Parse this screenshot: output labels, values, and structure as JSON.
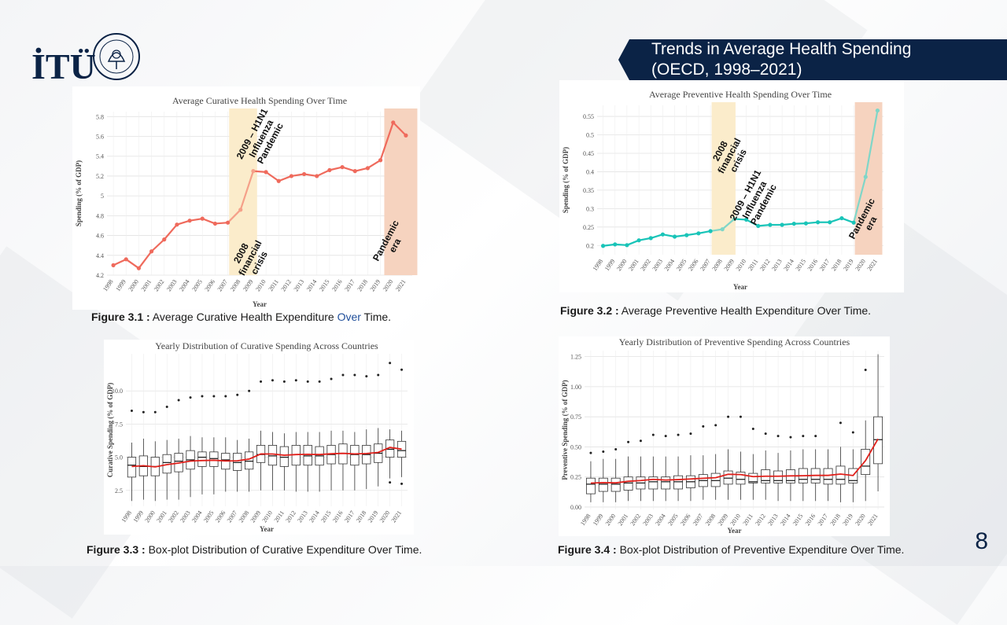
{
  "logo": {
    "text": "İTÜ",
    "seal_text": "İSTANBUL TEKNİK ÜNİVERSİTESİ 1773"
  },
  "slide": {
    "title_line1": "Trends in Average Health Spending",
    "title_line2": "(OECD, 1998–2021)",
    "page_number": "8"
  },
  "captions": {
    "fig1": {
      "label": "Figure 3.1 :",
      "text_a": " Average Curative Health Expenditure ",
      "text_b": "Over",
      "text_c": " Time."
    },
    "fig2": {
      "label": "Figure 3.2 :",
      "text": " Average Preventive Health Expenditure Over Time."
    },
    "fig3": {
      "label": "Figure 3.3 :",
      "text": " Box-plot Distribution of Curative Expenditure Over Time."
    },
    "fig4": {
      "label": "Figure 3.4 :",
      "text": " Box-plot Distribution of Preventive Expenditure Over Time."
    }
  },
  "chart_data": [
    {
      "id": "curative-line",
      "type": "line",
      "title": "Average Curative Health Spending Over Time",
      "xlabel": "Year",
      "ylabel": "Spending (% of GDP)",
      "x": [
        1998,
        1999,
        2000,
        2001,
        2002,
        2003,
        2004,
        2005,
        2006,
        2007,
        2008,
        2009,
        2010,
        2011,
        2012,
        2013,
        2014,
        2015,
        2016,
        2017,
        2018,
        2019,
        2020,
        2021
      ],
      "values": [
        4.3,
        4.36,
        4.27,
        4.44,
        4.56,
        4.71,
        4.75,
        4.77,
        4.72,
        4.73,
        4.86,
        5.25,
        5.24,
        5.15,
        5.2,
        5.22,
        5.2,
        5.26,
        5.29,
        5.25,
        5.28,
        5.36,
        5.74,
        5.61
      ],
      "ylim": [
        4.2,
        5.85
      ],
      "yticks": [
        4.2,
        4.4,
        4.6,
        4.8,
        5,
        5.2,
        5.4,
        5.6,
        5.8
      ],
      "color": "#ef6a5c",
      "highlight_segments": [
        {
          "from": 2007,
          "to": 2009,
          "color": "#f5a089"
        }
      ],
      "shaded_regions": [
        {
          "from": 2007.1,
          "to": 2009.3,
          "color": "#fbeccb"
        },
        {
          "from": 2019.3,
          "to": 2021.9,
          "color": "#f6d3bf"
        }
      ],
      "annotations": [
        {
          "lines": [
            "2009 – H1N1",
            "Influenza",
            "Pandemic"
          ]
        },
        {
          "lines": [
            "2008",
            "financial",
            "crisis"
          ]
        },
        {
          "lines": [
            "Pandemic",
            "era"
          ]
        }
      ],
      "grid": true
    },
    {
      "id": "preventive-line",
      "type": "line",
      "title": "Average Preventive Health Spending Over Time",
      "xlabel": "Year",
      "ylabel": "Spending (% of GDP)",
      "x": [
        1998,
        1999,
        2000,
        2001,
        2002,
        2003,
        2004,
        2005,
        2006,
        2007,
        2008,
        2009,
        2010,
        2011,
        2012,
        2013,
        2014,
        2015,
        2016,
        2017,
        2018,
        2019,
        2020,
        2021
      ],
      "values": [
        0.199,
        0.203,
        0.201,
        0.214,
        0.22,
        0.23,
        0.224,
        0.228,
        0.233,
        0.239,
        0.244,
        0.272,
        0.27,
        0.253,
        0.256,
        0.256,
        0.259,
        0.26,
        0.263,
        0.263,
        0.274,
        0.262,
        0.386,
        0.566
      ],
      "ylim": [
        0.175,
        0.58
      ],
      "yticks": [
        0.2,
        0.25,
        0.3,
        0.35,
        0.4,
        0.45,
        0.5,
        0.55
      ],
      "color": "#19c4b8",
      "highlight_segments": [
        {
          "from": 2007,
          "to": 2009,
          "color": "#7fd6c8"
        },
        {
          "from": 2019,
          "to": 2021,
          "color": "#7fd6c8"
        }
      ],
      "shaded_regions": [
        {
          "from": 2007.1,
          "to": 2009.1,
          "color": "#fbeccb"
        },
        {
          "from": 2019.1,
          "to": 2021.4,
          "color": "#f6d3bf"
        }
      ],
      "annotations": [
        {
          "lines": [
            "2008",
            "financial",
            "crisis"
          ]
        },
        {
          "lines": [
            "2009 – H1N1",
            "Influenza",
            "Pandemic"
          ]
        },
        {
          "lines": [
            "Pandemic",
            "era"
          ]
        }
      ],
      "grid": true
    },
    {
      "id": "curative-box",
      "type": "box",
      "title": "Yearly Distribution of Curative Spending Across Countries",
      "xlabel": "Year",
      "ylabel": "Curative Spending (% of GDP)",
      "x": [
        1998,
        1999,
        2000,
        2001,
        2002,
        2003,
        2004,
        2005,
        2006,
        2007,
        2008,
        2009,
        2010,
        2011,
        2012,
        2013,
        2014,
        2015,
        2016,
        2017,
        2018,
        2019,
        2020,
        2021
      ],
      "ylim": [
        1.3,
        12.8
      ],
      "yticks": [
        2.5,
        5.0,
        7.5,
        10.0
      ],
      "q1": [
        3.5,
        3.6,
        3.6,
        3.8,
        3.9,
        4.1,
        4.3,
        4.3,
        4.1,
        4.0,
        4.1,
        4.6,
        4.4,
        4.3,
        4.4,
        4.4,
        4.4,
        4.5,
        4.5,
        4.4,
        4.5,
        4.6,
        5.0,
        5.0
      ],
      "median": [
        4.4,
        4.3,
        4.3,
        4.6,
        4.7,
        4.8,
        5.0,
        4.9,
        4.8,
        4.6,
        4.7,
        5.2,
        5.1,
        5.0,
        5.2,
        5.1,
        5.1,
        5.2,
        5.3,
        5.2,
        5.2,
        5.3,
        5.6,
        5.5
      ],
      "q3": [
        5.0,
        5.1,
        5.0,
        5.2,
        5.3,
        5.5,
        5.4,
        5.4,
        5.3,
        5.3,
        5.4,
        5.9,
        5.9,
        5.8,
        5.9,
        5.9,
        5.8,
        5.9,
        6.0,
        5.9,
        5.9,
        6.0,
        6.3,
        6.2
      ],
      "whisker_low": [
        1.7,
        1.8,
        1.7,
        1.8,
        1.8,
        2.0,
        2.2,
        2.2,
        2.4,
        2.4,
        2.4,
        2.5,
        2.5,
        2.5,
        2.4,
        2.4,
        2.4,
        2.5,
        2.5,
        2.5,
        2.6,
        2.8,
        3.4,
        3.5
      ],
      "whisker_high": [
        6.1,
        6.4,
        6.2,
        6.3,
        6.4,
        6.6,
        6.5,
        6.5,
        6.5,
        6.3,
        6.4,
        7.0,
        6.9,
        6.8,
        6.9,
        6.9,
        6.9,
        7.0,
        7.0,
        6.9,
        7.1,
        7.2,
        7.1,
        7.0
      ],
      "outliers_high": [
        8.5,
        8.4,
        8.4,
        8.8,
        9.3,
        9.5,
        9.6,
        9.6,
        9.6,
        9.7,
        10.0,
        10.7,
        10.8,
        10.7,
        10.8,
        10.7,
        10.7,
        10.9,
        11.2,
        11.2,
        11.1,
        11.2,
        12.1,
        11.6
      ],
      "outliers_low": [
        null,
        null,
        null,
        null,
        null,
        null,
        null,
        null,
        null,
        null,
        null,
        null,
        null,
        null,
        null,
        null,
        null,
        null,
        null,
        null,
        null,
        null,
        3.1,
        3.0
      ],
      "mean": [
        4.3,
        4.36,
        4.27,
        4.44,
        4.56,
        4.71,
        4.75,
        4.77,
        4.72,
        4.73,
        4.86,
        5.25,
        5.24,
        5.15,
        5.2,
        5.22,
        5.2,
        5.26,
        5.29,
        5.25,
        5.28,
        5.36,
        5.74,
        5.61
      ],
      "mean_color": "#e0201b",
      "grid": true
    },
    {
      "id": "preventive-box",
      "type": "box",
      "title": "Yearly Distribution of Preventive Spending Across Countries",
      "xlabel": "Year",
      "ylabel": "Preventive Spending (% of GDP)",
      "x": [
        1998,
        1999,
        2000,
        2001,
        2002,
        2003,
        2004,
        2005,
        2006,
        2007,
        2008,
        2009,
        2010,
        2011,
        2012,
        2013,
        2014,
        2015,
        2016,
        2017,
        2018,
        2019,
        2020,
        2021
      ],
      "ylim": [
        -0.02,
        1.3
      ],
      "yticks": [
        0.0,
        0.25,
        0.5,
        0.75,
        1.0,
        1.25
      ],
      "q1": [
        0.11,
        0.13,
        0.13,
        0.14,
        0.15,
        0.15,
        0.15,
        0.15,
        0.16,
        0.17,
        0.17,
        0.19,
        0.19,
        0.2,
        0.2,
        0.2,
        0.2,
        0.2,
        0.2,
        0.19,
        0.19,
        0.2,
        0.27,
        0.36
      ],
      "median": [
        0.19,
        0.19,
        0.19,
        0.2,
        0.2,
        0.21,
        0.21,
        0.21,
        0.21,
        0.22,
        0.22,
        0.24,
        0.23,
        0.21,
        0.22,
        0.22,
        0.22,
        0.23,
        0.23,
        0.23,
        0.23,
        0.22,
        0.34,
        0.56
      ],
      "q3": [
        0.24,
        0.24,
        0.24,
        0.25,
        0.25,
        0.25,
        0.25,
        0.26,
        0.26,
        0.27,
        0.28,
        0.3,
        0.29,
        0.28,
        0.31,
        0.3,
        0.31,
        0.32,
        0.32,
        0.32,
        0.34,
        0.32,
        0.48,
        0.75
      ],
      "whisker_low": [
        0.04,
        0.04,
        0.04,
        0.05,
        0.05,
        0.05,
        0.05,
        0.05,
        0.05,
        0.06,
        0.06,
        0.06,
        0.06,
        0.06,
        0.06,
        0.05,
        0.05,
        0.05,
        0.05,
        0.05,
        0.04,
        0.04,
        0.05,
        0.13
      ],
      "whisker_high": [
        0.38,
        0.4,
        0.4,
        0.42,
        0.42,
        0.42,
        0.42,
        0.42,
        0.43,
        0.43,
        0.44,
        0.48,
        0.46,
        0.44,
        0.47,
        0.45,
        0.47,
        0.48,
        0.48,
        0.48,
        0.5,
        0.48,
        0.72,
        1.27
      ],
      "outliers_high": [
        0.45,
        0.46,
        0.48,
        0.54,
        0.55,
        0.6,
        0.59,
        0.6,
        0.61,
        0.67,
        0.68,
        0.75,
        0.75,
        0.65,
        0.61,
        0.59,
        0.58,
        0.59,
        0.59,
        null,
        0.7,
        0.62,
        1.14,
        null
      ],
      "outliers_low": [
        null,
        null,
        null,
        null,
        null,
        null,
        null,
        null,
        null,
        null,
        null,
        null,
        null,
        null,
        null,
        null,
        null,
        null,
        null,
        null,
        null,
        null,
        null,
        null
      ],
      "mean": [
        0.199,
        0.203,
        0.201,
        0.214,
        0.22,
        0.23,
        0.224,
        0.228,
        0.233,
        0.239,
        0.244,
        0.272,
        0.27,
        0.253,
        0.256,
        0.256,
        0.259,
        0.26,
        0.263,
        0.263,
        0.274,
        0.262,
        0.386,
        0.566
      ],
      "mean_color": "#e0201b",
      "grid": true
    }
  ]
}
